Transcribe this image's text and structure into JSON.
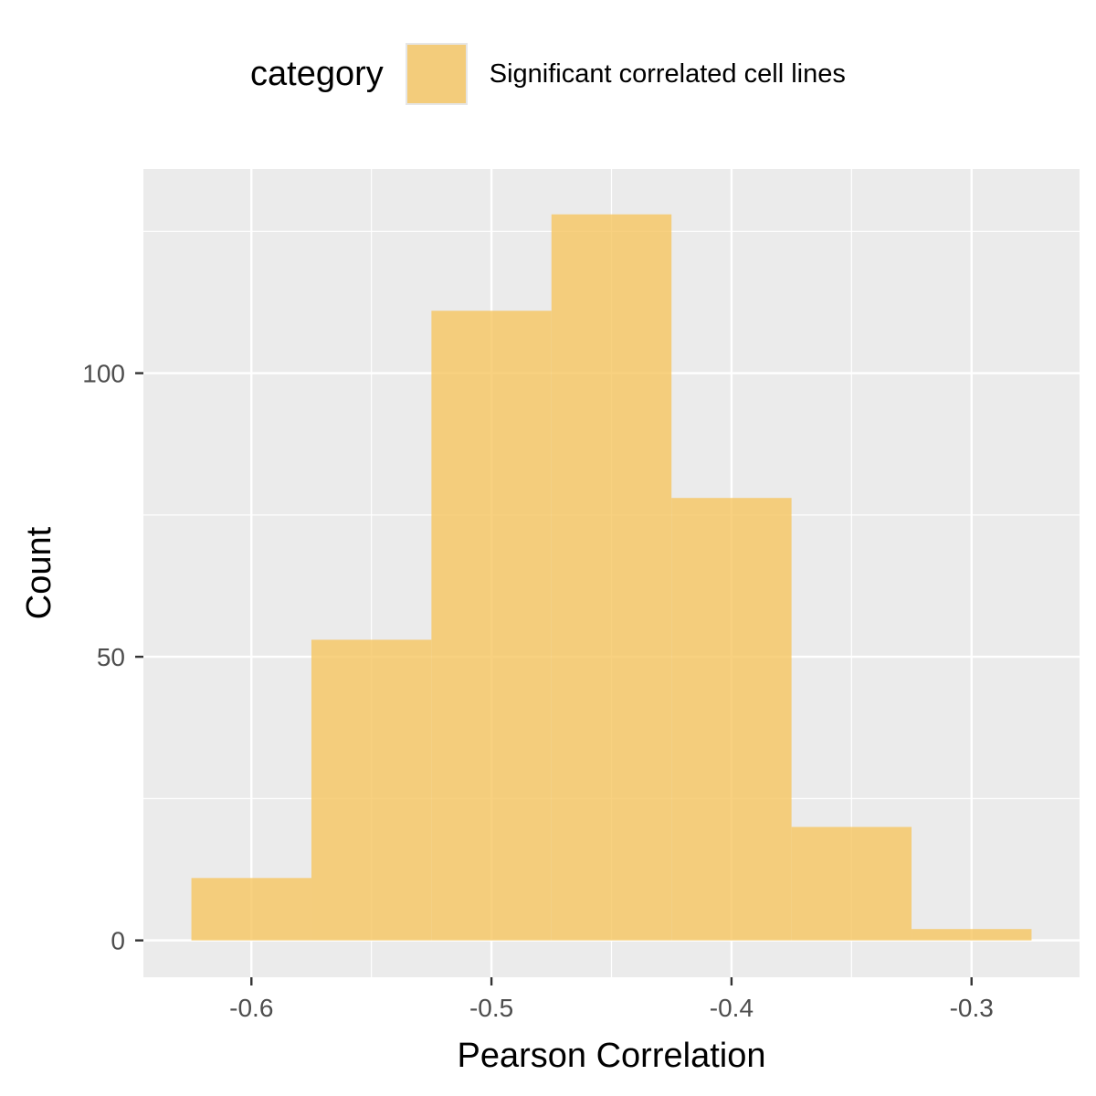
{
  "legend": {
    "title": "category",
    "entries": [
      {
        "label": "Significant correlated cell lines",
        "color": "#f6c560"
      }
    ]
  },
  "chart_data": {
    "type": "bar",
    "subtype": "histogram",
    "title": "",
    "xlabel": "Pearson Correlation",
    "ylabel": "Count",
    "xlim": [
      -0.645,
      -0.255
    ],
    "ylim": [
      -6.5,
      136
    ],
    "x_ticks": [
      -0.6,
      -0.5,
      -0.4,
      -0.3
    ],
    "x_tick_labels": [
      "-0.6",
      "-0.5",
      "-0.4",
      "-0.3"
    ],
    "y_ticks": [
      0,
      50,
      100
    ],
    "y_tick_labels": [
      "0",
      "50",
      "100"
    ],
    "grid": true,
    "legend_position": "top",
    "fill_color": "#f6c560",
    "fill_opacity": 0.8,
    "series": [
      {
        "name": "Significant correlated cell lines",
        "bins": [
          {
            "x0": -0.625,
            "x1": -0.575,
            "count": 11
          },
          {
            "x0": -0.575,
            "x1": -0.525,
            "count": 53
          },
          {
            "x0": -0.525,
            "x1": -0.475,
            "count": 111
          },
          {
            "x0": -0.475,
            "x1": -0.425,
            "count": 128
          },
          {
            "x0": -0.425,
            "x1": -0.375,
            "count": 78
          },
          {
            "x0": -0.375,
            "x1": -0.325,
            "count": 20
          },
          {
            "x0": -0.325,
            "x1": -0.275,
            "count": 2
          }
        ]
      }
    ]
  }
}
